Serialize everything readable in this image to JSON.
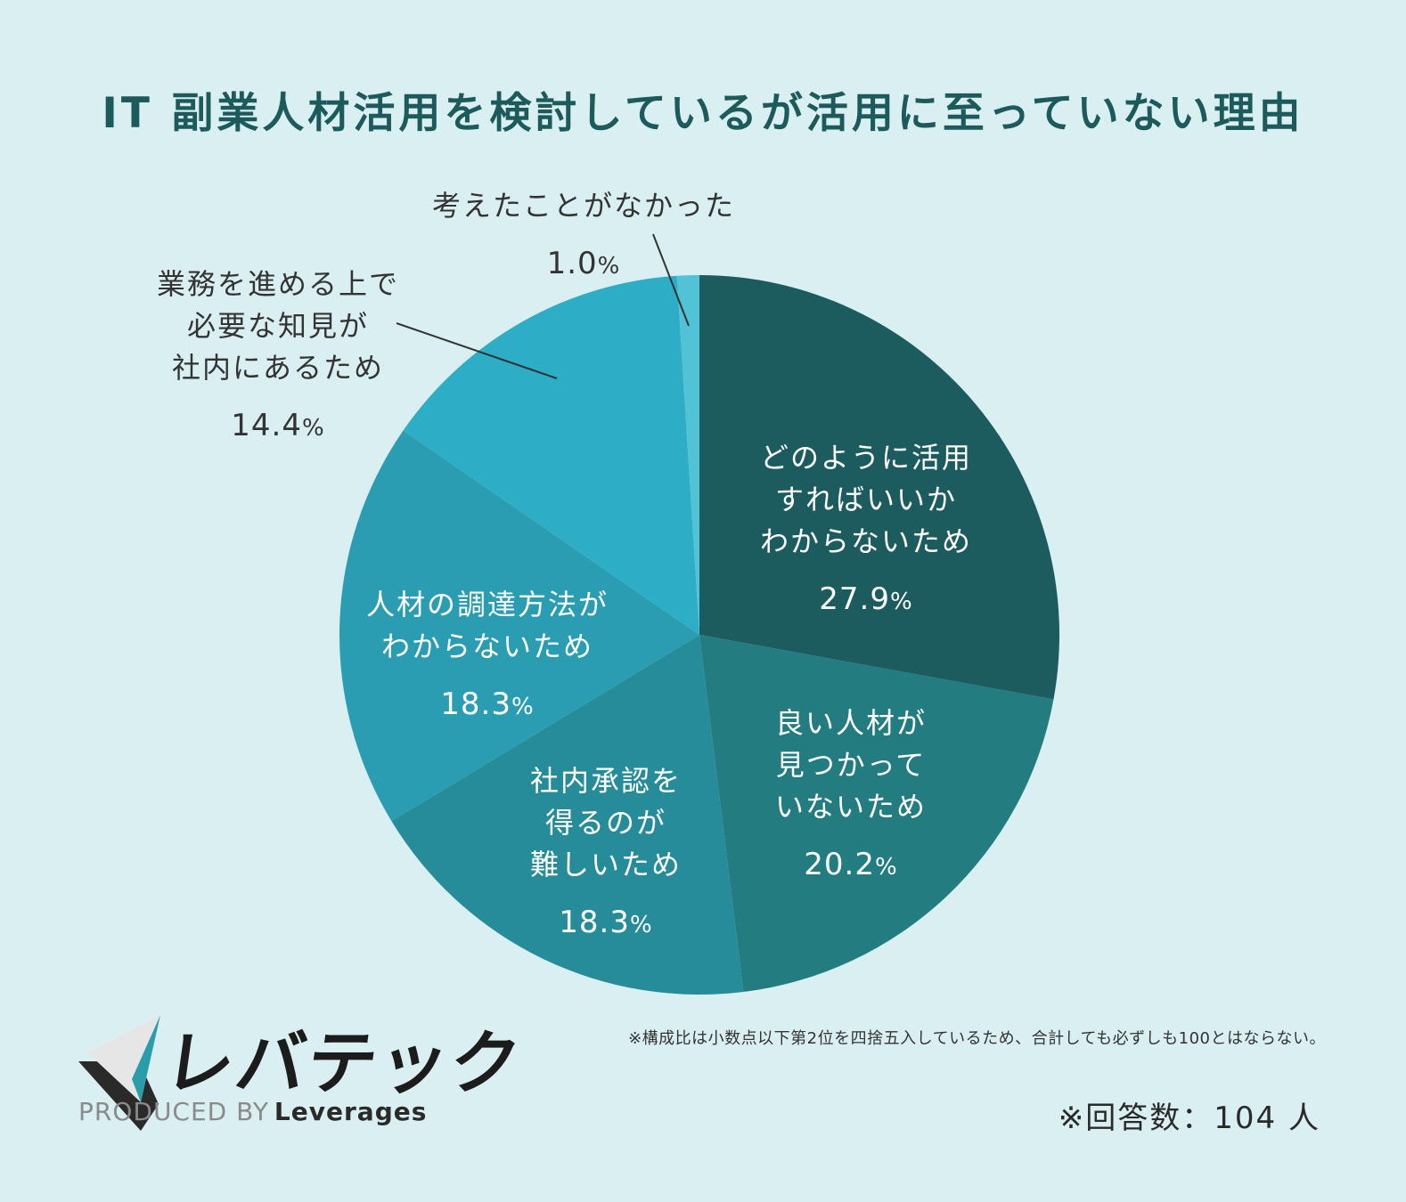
{
  "title": "IT 副業人材活用を検討しているが活用に至っていない理由",
  "chart_data": {
    "type": "pie",
    "title": "IT 副業人材活用を検討しているが活用に至っていない理由",
    "unit": "%",
    "slices": [
      {
        "label_lines": [
          "どのように活用",
          "すればいいか",
          "わからないため"
        ],
        "value": 27.9,
        "color": "#1d5c5e"
      },
      {
        "label_lines": [
          "良い人材が",
          "見つかって",
          "いないため"
        ],
        "value": 20.2,
        "color": "#237c80"
      },
      {
        "label_lines": [
          "社内承認を",
          "得るのが",
          "難しいため"
        ],
        "value": 18.3,
        "color": "#268c9a"
      },
      {
        "label_lines": [
          "人材の調達方法が",
          "わからないため"
        ],
        "value": 18.3,
        "color": "#2b9db2"
      },
      {
        "label_lines": [
          "業務を進める上で",
          "必要な知見が",
          "社内にあるため"
        ],
        "value": 14.4,
        "color": "#2eaec6"
      },
      {
        "label_lines": [
          "考えたことがなかった"
        ],
        "value": 1.0,
        "color": "#52c3d6"
      }
    ]
  },
  "footer": {
    "note": "※構成比は小数点以下第2位を四捨五入しているため、合計しても必ずしも100とはならない。",
    "respondents": "※回答数：104 人",
    "logo_text": "レバテック",
    "produced_by": "PRODUCED BY",
    "brand": "Leverages"
  }
}
